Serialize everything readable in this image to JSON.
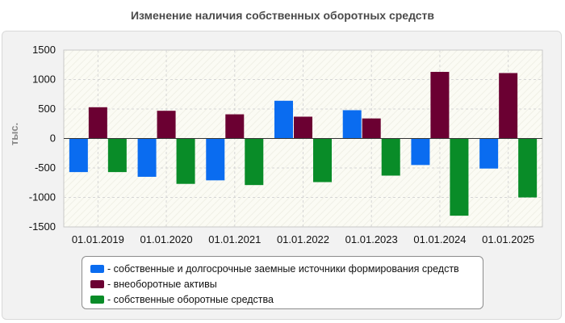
{
  "chart_data": {
    "type": "bar",
    "title": "Изменение наличия собственных оборотных средств",
    "ylabel": "тыс.",
    "xlabel": "",
    "ylim": [
      -1500,
      1500
    ],
    "yticks": [
      1500,
      1000,
      500,
      0,
      -500,
      -1000,
      -1500
    ],
    "grid": true,
    "legend_position": "bottom",
    "categories": [
      "01.01.2019",
      "01.01.2020",
      "01.01.2021",
      "01.01.2022",
      "01.01.2023",
      "01.01.2024",
      "01.01.2025"
    ],
    "series": [
      {
        "name": "- собственные и долгосрочные заемные источники формирования средств",
        "color": "#0a6cf0",
        "values": [
          -570,
          -650,
          -710,
          640,
          480,
          -450,
          -510
        ]
      },
      {
        "name": "- внеоборотные активы",
        "color": "#6b0032",
        "values": [
          530,
          470,
          410,
          370,
          340,
          1130,
          1110
        ]
      },
      {
        "name": "- собственные оборотные средства",
        "color": "#098c28",
        "values": [
          -570,
          -770,
          -790,
          -740,
          -630,
          -1310,
          -1000
        ]
      }
    ]
  }
}
